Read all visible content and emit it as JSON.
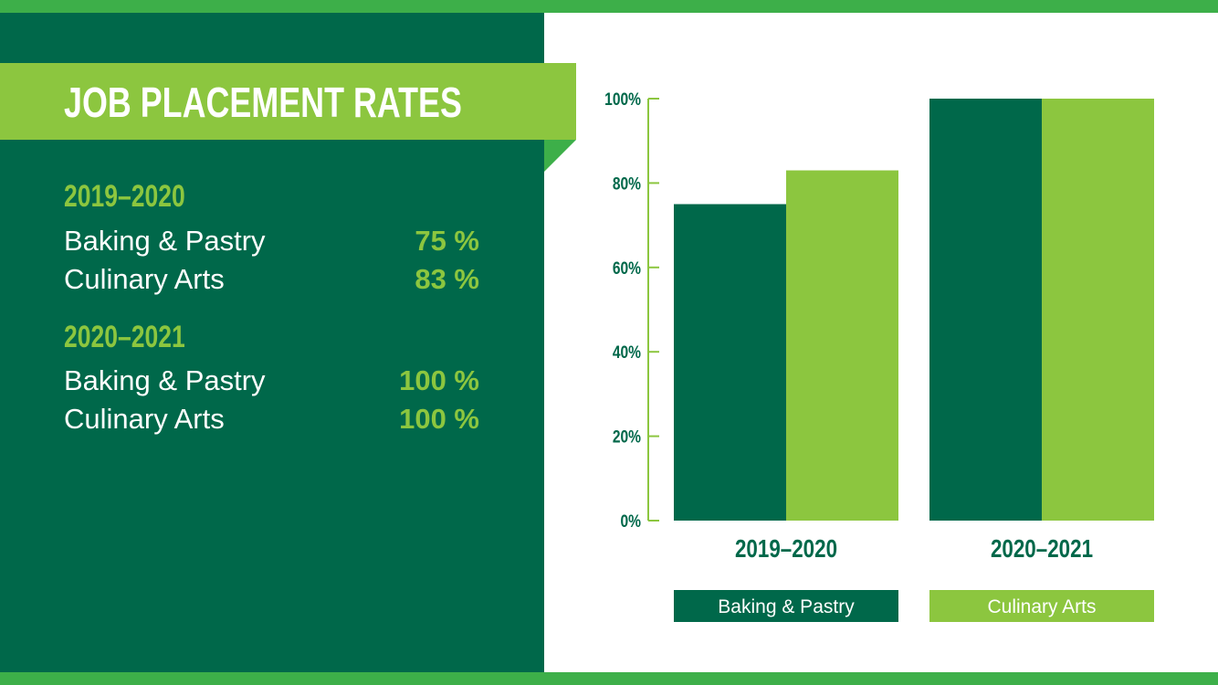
{
  "title": "JOB PLACEMENT RATES",
  "summary": [
    {
      "year": "2019–2020",
      "rows": [
        {
          "label": "Baking & Pastry",
          "value": "75 %"
        },
        {
          "label": "Culinary Arts",
          "value": "83 %"
        }
      ]
    },
    {
      "year": "2020–2021",
      "rows": [
        {
          "label": "Baking & Pastry",
          "value": "100 %"
        },
        {
          "label": "Culinary Arts",
          "value": "100 %"
        }
      ]
    }
  ],
  "colors": {
    "dark_green": "#00684a",
    "light_green": "#8cc63f",
    "bar_green": "#3daf49"
  },
  "chart_data": {
    "type": "bar",
    "categories": [
      "2019–2020",
      "2020–2021"
    ],
    "series": [
      {
        "name": "Baking & Pastry",
        "values": [
          75,
          100
        ],
        "color": "#00684a"
      },
      {
        "name": "Culinary Arts",
        "values": [
          83,
          100
        ],
        "color": "#8cc63f"
      }
    ],
    "yticks": [
      "0%",
      "20%",
      "40%",
      "60%",
      "80%",
      "100%"
    ],
    "ylim": [
      0,
      100
    ],
    "grid": false,
    "legend": "bottom"
  }
}
